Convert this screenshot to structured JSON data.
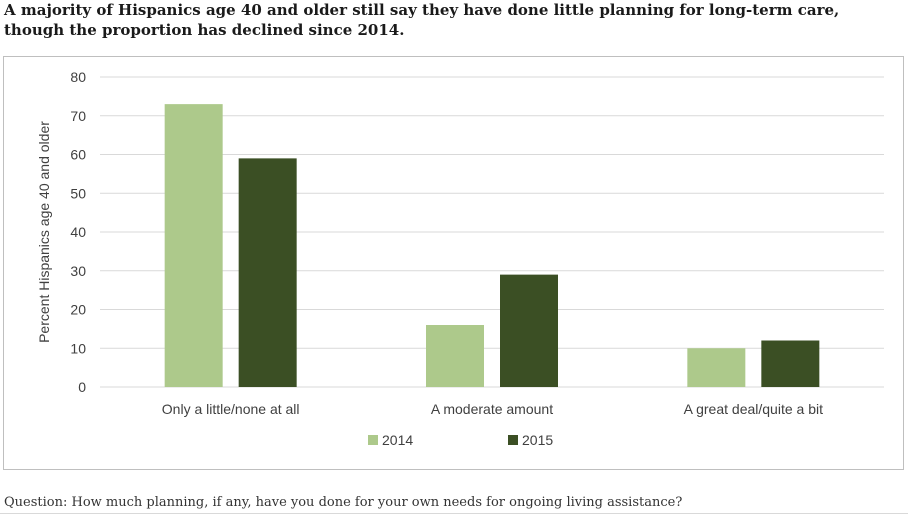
{
  "title_line1": "A majority of Hispanics age 40 and older still say they have done little planning for long-term care,",
  "title_line2": "though the proportion has declined since 2014.",
  "question": "Question: How much planning, if any, have you done for your own needs for ongoing living assistance?",
  "colors": {
    "series_2014": "#adc98b",
    "series_2015": "#3b4f24",
    "grid": "#d9d9d9",
    "text": "#404040"
  },
  "chart_data": {
    "type": "bar",
    "title": "",
    "ylabel": "Percent Hispanics age 40 and older",
    "xlabel": "",
    "ylim": [
      0,
      80
    ],
    "yticks": [
      0,
      10,
      20,
      30,
      40,
      50,
      60,
      70,
      80
    ],
    "grid": true,
    "legend": "bottom-center",
    "categories": [
      "Only a little/none at all",
      "A moderate amount",
      "A great deal/quite a bit"
    ],
    "series": [
      {
        "name": "2014",
        "values": [
          73,
          16,
          10
        ]
      },
      {
        "name": "2015",
        "values": [
          59,
          29,
          12
        ]
      }
    ]
  }
}
